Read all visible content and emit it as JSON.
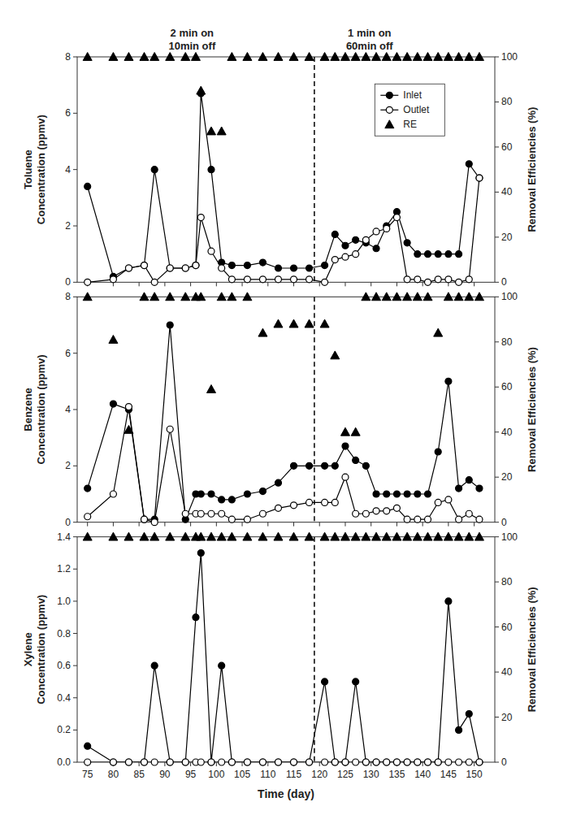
{
  "chart_data": [
    {
      "type": "line",
      "ylabel": "Toluene\nConcentration (ppmv)",
      "y2label": "Removal Efficiencies (%)",
      "annotations": [
        "2 min on\n10min off",
        "1 min on\n60min off"
      ],
      "x": [
        75,
        80,
        83,
        86,
        88,
        91,
        94,
        96,
        97,
        99,
        101,
        103,
        106,
        109,
        112,
        115,
        118,
        121,
        123,
        125,
        127,
        129,
        131,
        133,
        135,
        137,
        139,
        141,
        143,
        145,
        147,
        149,
        151
      ],
      "series": [
        {
          "name": "Inlet",
          "color": "#000000",
          "marker": "circle",
          "line_style": "solid",
          "values": [
            3.4,
            0.2,
            0.5,
            0.6,
            4.0,
            0.5,
            0.5,
            0.6,
            6.7,
            4.0,
            0.7,
            0.6,
            0.6,
            0.7,
            0.5,
            0.5,
            0.5,
            0.6,
            1.7,
            1.3,
            1.5,
            1.4,
            1.2,
            2.0,
            2.5,
            1.4,
            1.0,
            1.0,
            1.0,
            1.0,
            1.0,
            4.2,
            3.7
          ]
        },
        {
          "name": "Outlet",
          "color": "#000000",
          "marker": "circle-open",
          "line_style": "solid",
          "values": [
            0.0,
            0.1,
            0.5,
            0.6,
            0.0,
            0.5,
            0.5,
            0.6,
            2.3,
            1.1,
            0.5,
            0.1,
            0.1,
            0.1,
            0.1,
            0.1,
            0.1,
            0.0,
            0.8,
            0.9,
            1.0,
            1.5,
            1.8,
            1.9,
            2.3,
            0.1,
            0.1,
            0.0,
            0.1,
            0.1,
            0.0,
            0.1,
            3.7
          ]
        },
        {
          "name": "RE",
          "type": "scatter",
          "axis": "y2",
          "color": "#000000",
          "marker": "triangle",
          "line_style": "none",
          "values": [
            100,
            100,
            100,
            100,
            100,
            100,
            100,
            100,
            85,
            67,
            67,
            100,
            100,
            100,
            100,
            100,
            100,
            100,
            100,
            100,
            100,
            100,
            100,
            100,
            100,
            100,
            100,
            100,
            100,
            100,
            100,
            100,
            100
          ]
        }
      ],
      "xlim": [
        73,
        154
      ],
      "xticks": [
        75,
        80,
        85,
        90,
        95,
        100,
        105,
        110,
        115,
        120,
        125,
        130,
        135,
        140,
        145,
        150
      ],
      "ylim": [
        0,
        8
      ],
      "yticks": [
        0,
        2,
        4,
        6,
        8
      ],
      "y2lim": [
        0,
        100
      ],
      "y2ticks": [
        0,
        20,
        40,
        60,
        80,
        100
      ],
      "vline": 119,
      "grid": false,
      "legend": "upper right",
      "tick_labels": "y"
    },
    {
      "type": "line",
      "ylabel": "Benzene\nConcentration (ppmv)",
      "y2label": "Removal Efficiencies (%)",
      "x": [
        75,
        80,
        83,
        86,
        88,
        91,
        94,
        96,
        97,
        99,
        101,
        103,
        106,
        109,
        112,
        115,
        118,
        121,
        123,
        125,
        127,
        129,
        131,
        133,
        135,
        137,
        139,
        141,
        143,
        145,
        147,
        149,
        151
      ],
      "series": [
        {
          "color": "#000000",
          "marker": "circle",
          "line_style": "solid",
          "values": [
            1.2,
            4.2,
            4.0,
            0.1,
            0.1,
            7.0,
            0.1,
            1.0,
            1.0,
            1.0,
            0.8,
            0.8,
            1.0,
            1.1,
            1.4,
            2.0,
            2.0,
            2.0,
            2.0,
            2.7,
            2.2,
            2.0,
            1.0,
            1.0,
            1.0,
            1.0,
            1.0,
            1.0,
            2.5,
            5.0,
            1.2,
            1.5,
            1.2
          ]
        },
        {
          "color": "#000000",
          "marker": "circle-open",
          "line_style": "solid",
          "values": [
            0.2,
            1.0,
            4.1,
            0.1,
            0.0,
            3.3,
            0.3,
            0.3,
            0.3,
            0.3,
            0.3,
            0.1,
            0.1,
            0.3,
            0.5,
            0.6,
            0.7,
            0.7,
            0.7,
            1.6,
            0.3,
            0.3,
            0.4,
            0.4,
            0.5,
            0.1,
            0.1,
            0.1,
            0.7,
            0.8,
            0.1,
            0.3,
            0.1
          ]
        },
        {
          "type": "scatter",
          "axis": "y2",
          "color": "#000000",
          "marker": "triangle",
          "line_style": "none",
          "values": [
            100,
            81,
            41,
            100,
            100,
            100,
            100,
            100,
            100,
            59,
            100,
            100,
            100,
            84,
            88,
            88,
            88,
            88,
            74,
            40,
            40,
            100,
            100,
            100,
            100,
            100,
            100,
            100,
            84,
            100,
            100,
            100,
            100
          ]
        }
      ],
      "xlim": [
        73,
        154
      ],
      "xticks": [
        75,
        80,
        85,
        90,
        95,
        100,
        105,
        110,
        115,
        120,
        125,
        130,
        135,
        140,
        145,
        150
      ],
      "ylim": [
        0,
        8
      ],
      "yticks": [
        0,
        2,
        4,
        6,
        8
      ],
      "y2lim": [
        0,
        100
      ],
      "y2ticks": [
        0,
        20,
        40,
        60,
        80,
        100
      ],
      "vline": 119,
      "grid": false,
      "tick_labels": "y"
    },
    {
      "type": "line",
      "xlabel": "Time (day)",
      "ylabel": "Xylene\nConcentration (ppmv)",
      "y2label": "Removal Efficiencies (%)",
      "x": [
        75,
        80,
        83,
        86,
        88,
        91,
        94,
        96,
        97,
        99,
        101,
        103,
        106,
        109,
        112,
        115,
        118,
        121,
        123,
        125,
        127,
        129,
        131,
        133,
        135,
        137,
        139,
        141,
        143,
        145,
        147,
        149,
        151
      ],
      "series": [
        {
          "color": "#000000",
          "marker": "circle",
          "line_style": "solid",
          "values": [
            0.1,
            0.0,
            0.0,
            0.0,
            0.6,
            0.0,
            0.0,
            0.9,
            1.3,
            0.0,
            0.6,
            0.0,
            0.0,
            0.0,
            0.0,
            0.0,
            0.0,
            0.5,
            0.0,
            0.0,
            0.5,
            0.0,
            0.0,
            0.0,
            0.0,
            0.0,
            0.0,
            0.0,
            0.0,
            1.0,
            0.2,
            0.3,
            0.0
          ]
        },
        {
          "color": "#000000",
          "marker": "circle-open",
          "line_style": "solid",
          "values": [
            0.0,
            0.0,
            0.0,
            0.0,
            0.0,
            0.0,
            0.0,
            0.0,
            0.0,
            0.0,
            0.0,
            0.0,
            0.0,
            0.0,
            0.0,
            0.0,
            0.0,
            0.0,
            0.0,
            0.0,
            0.0,
            0.0,
            0.0,
            0.0,
            0.0,
            0.0,
            0.0,
            0.0,
            0.0,
            0.0,
            0.0,
            0.0,
            0.0
          ]
        },
        {
          "type": "scatter",
          "axis": "y2",
          "color": "#000000",
          "marker": "triangle",
          "line_style": "none",
          "values": [
            100,
            100,
            100,
            100,
            100,
            100,
            100,
            100,
            100,
            100,
            100,
            100,
            100,
            100,
            100,
            100,
            100,
            100,
            100,
            100,
            100,
            100,
            100,
            100,
            100,
            100,
            100,
            100,
            100,
            100,
            100,
            100,
            100
          ]
        }
      ],
      "xlim": [
        73,
        154
      ],
      "xticks": [
        75,
        80,
        85,
        90,
        95,
        100,
        105,
        110,
        115,
        120,
        125,
        130,
        135,
        140,
        145,
        150
      ],
      "ylim": [
        0,
        1.4
      ],
      "yticks": [
        {
          "value": 0,
          "label": "0.0"
        },
        0.2,
        0.4,
        0.6,
        0.8,
        {
          "value": 1,
          "label": "1.0"
        },
        1.2,
        1.4
      ],
      "y2lim": [
        0,
        100
      ],
      "y2ticks": [
        0,
        20,
        40,
        60,
        80,
        100
      ],
      "vline": 119,
      "grid": false
    }
  ]
}
